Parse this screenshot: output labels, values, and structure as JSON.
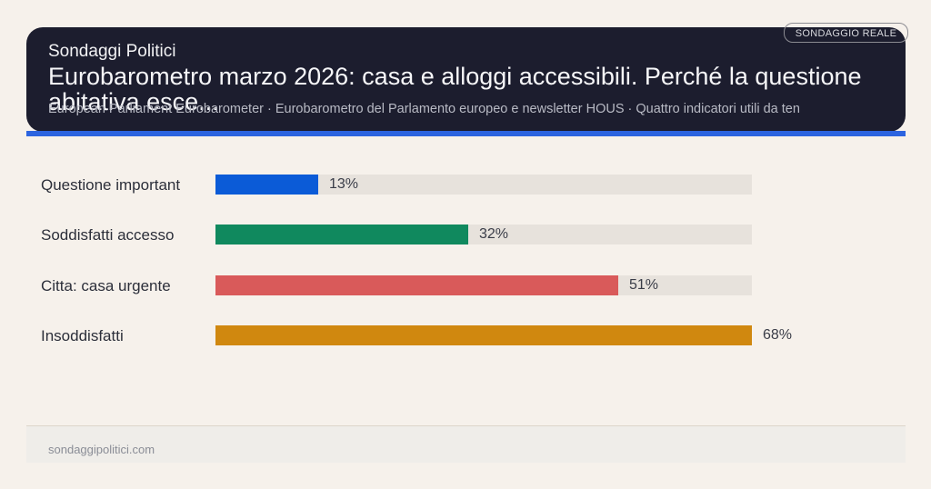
{
  "header": {
    "brand": "Sondaggi Politici",
    "title": "Eurobarometro marzo 2026: casa e alloggi accessibili. Perché la questione abitativa esce...",
    "subtitle": "European Parliament Eurobarometer · Eurobarometro del Parlamento europeo e newsletter HOUS · Quattro indicatori utili da ten",
    "badge": "SONDAGGIO REALE"
  },
  "colors": {
    "header_bg": "#1c1d2e",
    "accent": "#2c64e0",
    "background": "#f6f1eb",
    "track": "#e7e2dc"
  },
  "chart_data": {
    "type": "bar",
    "orientation": "horizontal",
    "title": "Eurobarometro marzo 2026: casa e alloggi accessibili",
    "categories": [
      "Questione important",
      "Soddisfatti accesso",
      "Citta: casa urgente",
      "Insoddisfatti"
    ],
    "values": [
      13,
      32,
      51,
      68
    ],
    "value_labels": [
      "13%",
      "32%",
      "51%",
      "68%"
    ],
    "colors": [
      "#0b5bd7",
      "#10895e",
      "#d95a5a",
      "#d0880f"
    ],
    "xlim": [
      0,
      68
    ],
    "xlabel": "",
    "ylabel": "",
    "grid": false,
    "legend": "none"
  },
  "footer": {
    "site": "sondaggipolitici.com"
  }
}
